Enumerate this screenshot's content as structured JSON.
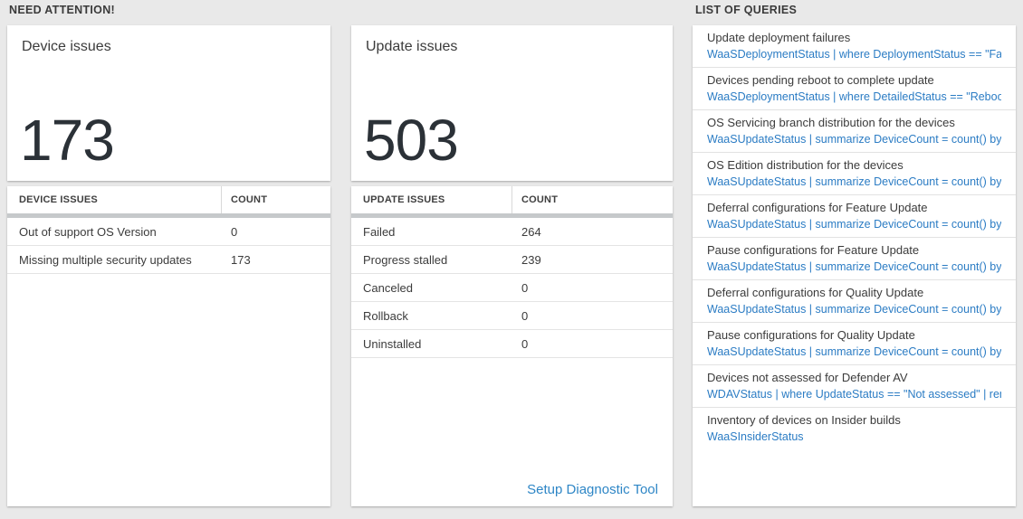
{
  "sections": {
    "need_attention": "NEED ATTENTION!",
    "list_of_queries": "LIST OF QUERIES"
  },
  "device_card": {
    "title": "Device issues",
    "count": "173",
    "table": {
      "headers": [
        "DEVICE ISSUES",
        "COUNT"
      ],
      "rows": [
        {
          "label": "Out of support OS Version",
          "count": "0"
        },
        {
          "label": "Missing multiple security updates",
          "count": "173"
        }
      ]
    }
  },
  "update_card": {
    "title": "Update issues",
    "count": "503",
    "table": {
      "headers": [
        "UPDATE ISSUES",
        "COUNT"
      ],
      "rows": [
        {
          "label": "Failed",
          "count": "264"
        },
        {
          "label": "Progress stalled",
          "count": "239"
        },
        {
          "label": "Canceled",
          "count": "0"
        },
        {
          "label": "Rollback",
          "count": "0"
        },
        {
          "label": "Uninstalled",
          "count": "0"
        }
      ]
    },
    "link_label": "Setup Diagnostic Tool"
  },
  "queries": [
    {
      "title": "Update deployment failures",
      "query": "WaaSDeploymentStatus | where DeploymentStatus == \"Failed\" |..."
    },
    {
      "title": "Devices pending reboot to complete update",
      "query": "WaaSDeploymentStatus | where DetailedStatus == \"Reboot pend..."
    },
    {
      "title": "OS Servicing branch distribution for the devices",
      "query": "WaaSUpdateStatus | summarize DeviceCount = count() by OSSer..."
    },
    {
      "title": "OS Edition distribution for the devices",
      "query": "WaaSUpdateStatus | summarize DeviceCount = count() by OSEdit..."
    },
    {
      "title": "Deferral configurations for Feature Update",
      "query": "WaaSUpdateStatus | summarize DeviceCount = count() by Featur..."
    },
    {
      "title": "Pause configurations for Feature Update",
      "query": "WaaSUpdateStatus | summarize DeviceCount = count() by Featur..."
    },
    {
      "title": "Deferral configurations for Quality Update",
      "query": "WaaSUpdateStatus | summarize DeviceCount = count() by Qualit..."
    },
    {
      "title": "Pause configurations for Quality Update",
      "query": "WaaSUpdateStatus | summarize DeviceCount = count() by Qualit..."
    },
    {
      "title": "Devices not assessed for Defender AV",
      "query": "WDAVStatus | where UpdateStatus == \"Not assessed\" | render ta..."
    },
    {
      "title": "Inventory of devices on Insider builds",
      "query": "WaaSInsiderStatus"
    }
  ],
  "colors": {
    "background": "#e9e9e9",
    "panel": "#ffffff",
    "accent_blue": "#2b7cc4",
    "link_blue": "#2e86c6",
    "number_text": "#2b3137",
    "header_bar": "#c6c9cb"
  }
}
